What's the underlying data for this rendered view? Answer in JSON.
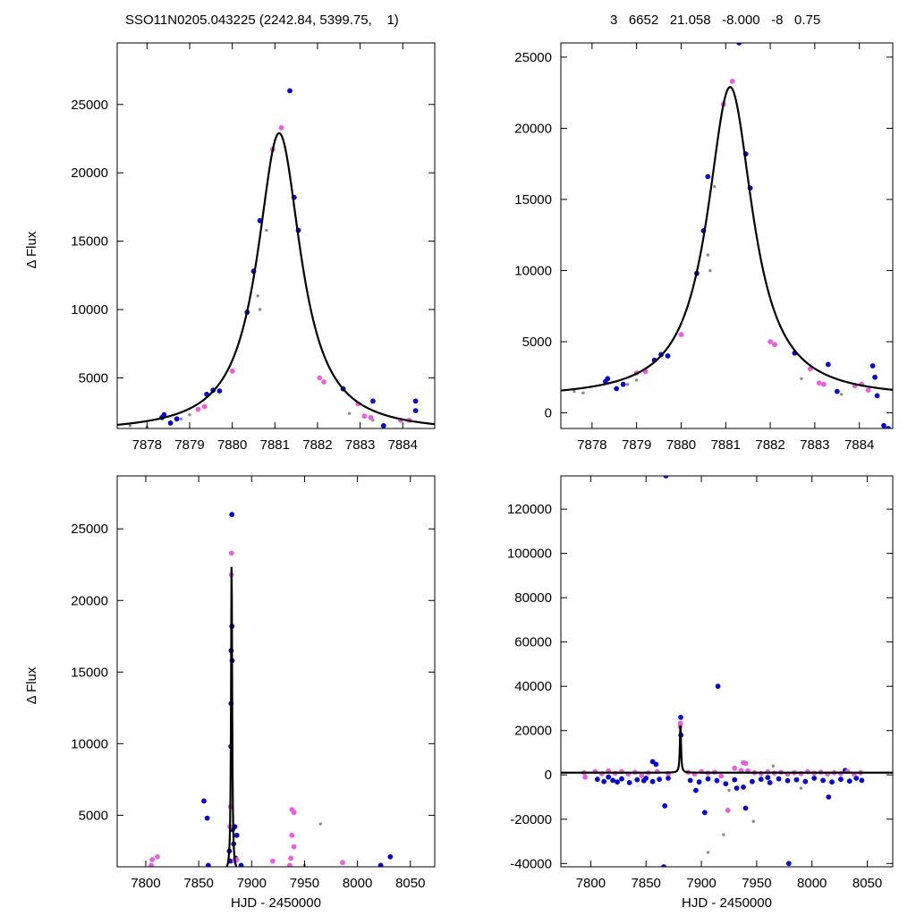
{
  "header": {
    "left": "SSO11N0205.043225 (2242.84, 5399.75,    1)",
    "right": "3   6652   21.058   -8.000   -8   0.75"
  },
  "colors": {
    "blue": "#0a0ac8",
    "magenta": "#ea5fe0",
    "gray": "#8c8c8c",
    "model": "#000000"
  },
  "chart_data": [
    {
      "type": "scatter",
      "panel": "top-left",
      "xlabel": "",
      "ylabel": "Δ Flux",
      "xlim": [
        7877.3,
        7884.75
      ],
      "ylim": [
        1300,
        29500
      ],
      "xticks": [
        7878,
        7879,
        7880,
        7881,
        7882,
        7883,
        7884
      ],
      "yticks": [
        5000,
        10000,
        15000,
        20000,
        25000
      ],
      "model": {
        "t0": 7881.1,
        "peak": 22900,
        "base": 1000,
        "width": 0.62
      },
      "series": [
        {
          "color": "blue",
          "points": [
            [
              7878.35,
              2100
            ],
            [
              7878.4,
              2300
            ],
            [
              7878.55,
              1700
            ],
            [
              7878.7,
              2000
            ],
            [
              7879.4,
              3800
            ],
            [
              7879.55,
              4100
            ],
            [
              7879.7,
              4050
            ],
            [
              7880.35,
              9800
            ],
            [
              7880.5,
              12800
            ],
            [
              7880.65,
              16500
            ],
            [
              7881.35,
              26000
            ],
            [
              7881.45,
              18200
            ],
            [
              7881.55,
              15800
            ],
            [
              7882.6,
              4200
            ],
            [
              7883.3,
              3300
            ],
            [
              7883.55,
              1500
            ],
            [
              7884.3,
              2600
            ],
            [
              7884.3,
              3300
            ]
          ]
        },
        {
          "color": "magenta",
          "points": [
            [
              7879.2,
              2700
            ],
            [
              7879.35,
              2900
            ],
            [
              7880.0,
              5500
            ],
            [
              7880.95,
              21700
            ],
            [
              7881.15,
              23300
            ],
            [
              7882.05,
              5000
            ],
            [
              7882.15,
              4700
            ],
            [
              7882.95,
              3100
            ],
            [
              7883.1,
              2200
            ],
            [
              7883.25,
              2100
            ],
            [
              7883.95,
              1900
            ],
            [
              7884.15,
              1900
            ]
          ]
        },
        {
          "color": "gray",
          "points": [
            [
              7877.6,
              1500
            ],
            [
              7878.0,
              1400
            ],
            [
              7878.8,
              2000
            ],
            [
              7879.0,
              2300
            ],
            [
              7880.6,
              11000
            ],
            [
              7880.65,
              10000
            ],
            [
              7880.8,
              15800
            ],
            [
              7882.75,
              2400
            ],
            [
              7883.3,
              1900
            ]
          ]
        }
      ]
    },
    {
      "type": "scatter",
      "panel": "top-right",
      "xlabel": "",
      "ylabel": "",
      "xlim": [
        7877.3,
        7884.75
      ],
      "ylim": [
        -1100,
        26000
      ],
      "xticks": [
        7878,
        7879,
        7880,
        7881,
        7882,
        7883,
        7884
      ],
      "yticks": [
        0,
        5000,
        10000,
        15000,
        20000,
        25000
      ],
      "model": {
        "t0": 7881.1,
        "peak": 22900,
        "base": 1000,
        "width": 0.62
      },
      "series": [
        {
          "color": "blue",
          "points": [
            [
              7878.3,
              2200
            ],
            [
              7878.35,
              2400
            ],
            [
              7878.55,
              1700
            ],
            [
              7878.7,
              2000
            ],
            [
              7879.4,
              3700
            ],
            [
              7879.55,
              4100
            ],
            [
              7879.7,
              4000
            ],
            [
              7880.35,
              9800
            ],
            [
              7880.5,
              12800
            ],
            [
              7880.6,
              16600
            ],
            [
              7881.3,
              26000
            ],
            [
              7881.45,
              18200
            ],
            [
              7881.55,
              15800
            ],
            [
              7882.55,
              4200
            ],
            [
              7883.3,
              3400
            ],
            [
              7883.5,
              1500
            ],
            [
              7884.3,
              3300
            ],
            [
              7884.35,
              2500
            ],
            [
              7884.4,
              1200
            ],
            [
              7884.55,
              -900
            ],
            [
              7884.65,
              -1100
            ]
          ]
        },
        {
          "color": "magenta",
          "points": [
            [
              7879.0,
              2800
            ],
            [
              7879.2,
              2900
            ],
            [
              7880.0,
              5500
            ],
            [
              7880.95,
              21700
            ],
            [
              7881.15,
              23300
            ],
            [
              7882.0,
              5000
            ],
            [
              7882.1,
              4800
            ],
            [
              7882.9,
              3100
            ],
            [
              7883.1,
              2100
            ],
            [
              7883.2,
              2000
            ],
            [
              7883.9,
              1900
            ],
            [
              7884.05,
              2000
            ],
            [
              7884.2,
              1600
            ]
          ]
        },
        {
          "color": "gray",
          "points": [
            [
              7877.6,
              1500
            ],
            [
              7877.8,
              1400
            ],
            [
              7878.8,
              2000
            ],
            [
              7879.0,
              2300
            ],
            [
              7880.6,
              11100
            ],
            [
              7880.65,
              10000
            ],
            [
              7880.75,
              15900
            ],
            [
              7882.7,
              2400
            ],
            [
              7883.6,
              1300
            ]
          ]
        }
      ]
    },
    {
      "type": "scatter",
      "panel": "bottom-left",
      "xlabel": "HJD - 2450000",
      "ylabel": "Δ Flux",
      "xlim": [
        7773,
        8073
      ],
      "ylim": [
        1400,
        28700
      ],
      "xticks": [
        7800,
        7850,
        7900,
        7950,
        8000,
        8050
      ],
      "yticks": [
        5000,
        10000,
        15000,
        20000,
        25000
      ],
      "model": {
        "t0": 7881.1,
        "peak": 22900,
        "base": 1000,
        "width": 0.62
      },
      "series": [
        {
          "color": "blue",
          "points": [
            [
              7855,
              6000
            ],
            [
              7858,
              4800
            ],
            [
              7859,
              1500
            ],
            [
              7879,
              2500
            ],
            [
              7880,
              1800
            ],
            [
              7880.4,
              9800
            ],
            [
              7880.6,
              12800
            ],
            [
              7880.7,
              16500
            ],
            [
              7881.35,
              26000
            ],
            [
              7881.45,
              18200
            ],
            [
              7881.55,
              15800
            ],
            [
              7882,
              4000
            ],
            [
              7883,
              3000
            ],
            [
              7884,
              4200
            ],
            [
              7885,
              2000
            ],
            [
              7886,
              3600
            ],
            [
              7890,
              1500
            ],
            [
              8022,
              1500
            ],
            [
              8031,
              2100
            ]
          ]
        },
        {
          "color": "magenta",
          "points": [
            [
              7805,
              1500
            ],
            [
              7806,
              1900
            ],
            [
              7811,
              2100
            ],
            [
              7879.5,
              4200
            ],
            [
              7880,
              5600
            ],
            [
              7880.9,
              21800
            ],
            [
              7881.1,
              23300
            ],
            [
              7884,
              1800
            ],
            [
              7886,
              1900
            ],
            [
              7920,
              1800
            ],
            [
              7936,
              1500
            ],
            [
              7937,
              2000
            ],
            [
              7938,
              3600
            ],
            [
              7938,
              5400
            ],
            [
              7940,
              5200
            ],
            [
              7940,
              2800
            ],
            [
              7986,
              1700
            ]
          ]
        },
        {
          "color": "gray",
          "points": [
            [
              7965,
              4400
            ],
            [
              7950,
              1500
            ]
          ]
        }
      ]
    },
    {
      "type": "scatter",
      "panel": "bottom-right",
      "xlabel": "HJD - 2450000",
      "ylabel": "",
      "xlim": [
        7773,
        8073
      ],
      "ylim": [
        -41500,
        135000
      ],
      "xticks": [
        7800,
        7850,
        7900,
        7950,
        8000,
        8050
      ],
      "yticks": [
        -40000,
        -20000,
        0,
        20000,
        40000,
        60000,
        80000,
        100000,
        120000
      ],
      "model": {
        "t0": 7881.1,
        "peak": 22900,
        "base": 1000,
        "width": 0.62
      },
      "series": [
        {
          "color": "blue",
          "points": [
            [
              7868,
              135000
            ],
            [
              7915,
              40000
            ],
            [
              7881.35,
              26000
            ],
            [
              7881.5,
              18000
            ],
            [
              7856,
              6000
            ],
            [
              7859,
              4800
            ],
            [
              7867,
              -14000
            ],
            [
              7866,
              -41500
            ],
            [
              7903,
              -17000
            ],
            [
              7940,
              -15000
            ],
            [
              7979,
              -40000
            ],
            [
              8015,
              -10000
            ],
            [
              7895,
              -7000
            ],
            [
              7932,
              -6000
            ],
            [
              7806,
              -2000
            ],
            [
              7812,
              -3000
            ],
            [
              7820,
              -2500
            ],
            [
              7828,
              -1800
            ],
            [
              7835,
              -3500
            ],
            [
              7842,
              -2200
            ],
            [
              7850,
              -1500
            ],
            [
              7856,
              -3000
            ],
            [
              7862,
              -2000
            ],
            [
              7870,
              -1500
            ],
            [
              7890,
              -2500
            ],
            [
              7898,
              -3200
            ],
            [
              7906,
              -1800
            ],
            [
              7914,
              -2600
            ],
            [
              7922,
              -4000
            ],
            [
              7930,
              -2200
            ],
            [
              7938,
              -5500
            ],
            [
              7946,
              -3000
            ],
            [
              7954,
              -2000
            ],
            [
              7962,
              -3500
            ],
            [
              7970,
              -1800
            ],
            [
              7978,
              -2600
            ],
            [
              7986,
              -2200
            ],
            [
              7994,
              -3000
            ],
            [
              8002,
              -1500
            ],
            [
              8010,
              -2500
            ],
            [
              8018,
              -3200
            ],
            [
              8026,
              -2000
            ],
            [
              8034,
              -2800
            ],
            [
              8040,
              -1500
            ],
            [
              8045,
              -2500
            ],
            [
              8030,
              2000
            ],
            [
              7816,
              -1000
            ],
            [
              7824,
              -3200
            ],
            [
              7848,
              -2600
            ],
            [
              7960,
              -1200
            ]
          ]
        },
        {
          "color": "magenta",
          "points": [
            [
              7794,
              1000
            ],
            [
              7795,
              -1000
            ],
            [
              7804,
              1500
            ],
            [
              7810,
              500
            ],
            [
              7816,
              1800
            ],
            [
              7822,
              700
            ],
            [
              7828,
              1500
            ],
            [
              7834,
              400
            ],
            [
              7840,
              1200
            ],
            [
              7846,
              -300
            ],
            [
              7852,
              900
            ],
            [
              7860,
              1500
            ],
            [
              7870,
              600
            ],
            [
              7880.9,
              21800
            ],
            [
              7881.1,
              23300
            ],
            [
              7888,
              1200
            ],
            [
              7894,
              400
            ],
            [
              7900,
              1500
            ],
            [
              7906,
              800
            ],
            [
              7912,
              1200
            ],
            [
              7918,
              -500
            ],
            [
              7924,
              -16000
            ],
            [
              7930,
              3000
            ],
            [
              7936,
              2000
            ],
            [
              7938,
              5500
            ],
            [
              7940,
              5200
            ],
            [
              7942,
              1800
            ],
            [
              7948,
              1000
            ],
            [
              7954,
              600
            ],
            [
              7960,
              1400
            ],
            [
              7966,
              800
            ],
            [
              7972,
              1200
            ],
            [
              7978,
              400
            ],
            [
              7984,
              1000
            ],
            [
              7990,
              600
            ],
            [
              7996,
              1400
            ],
            [
              8002,
              800
            ],
            [
              8008,
              1200
            ],
            [
              8014,
              400
            ],
            [
              8020,
              1000
            ],
            [
              8026,
              600
            ],
            [
              8032,
              1500
            ],
            [
              8038,
              300
            ],
            [
              8044,
              1000
            ]
          ]
        },
        {
          "color": "gray",
          "points": [
            [
              7920,
              -27000
            ],
            [
              7906,
              -35000
            ],
            [
              7947,
              -21000
            ],
            [
              7965,
              4000
            ],
            [
              7990,
              -6000
            ],
            [
              7925,
              -7000
            ]
          ]
        }
      ]
    }
  ]
}
